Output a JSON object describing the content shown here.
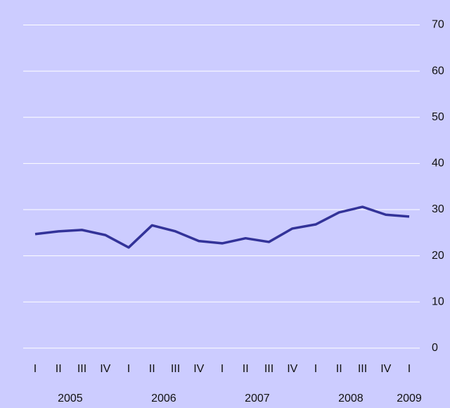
{
  "chart_data": {
    "type": "line",
    "categories": [
      "I",
      "II",
      "III",
      "IV",
      "I",
      "II",
      "III",
      "IV",
      "I",
      "II",
      "III",
      "IV",
      "I",
      "II",
      "III",
      "IV",
      "I"
    ],
    "groups": [
      {
        "label": "2005",
        "span": 4
      },
      {
        "label": "2006",
        "span": 4
      },
      {
        "label": "2007",
        "span": 4
      },
      {
        "label": "2008",
        "span": 4
      },
      {
        "label": "2009",
        "span": 1
      }
    ],
    "series": [
      {
        "color": "#333399",
        "values": [
          24.7,
          25.3,
          25.6,
          24.5,
          21.8,
          26.6,
          25.3,
          23.2,
          22.7,
          23.8,
          23.0,
          25.9,
          26.8,
          29.4,
          30.6,
          28.9,
          28.5
        ]
      }
    ],
    "ylim": [
      -2,
      74.5
    ],
    "yticks": [
      0,
      10,
      20,
      30,
      40,
      50,
      60,
      70
    ],
    "grid": true
  }
}
